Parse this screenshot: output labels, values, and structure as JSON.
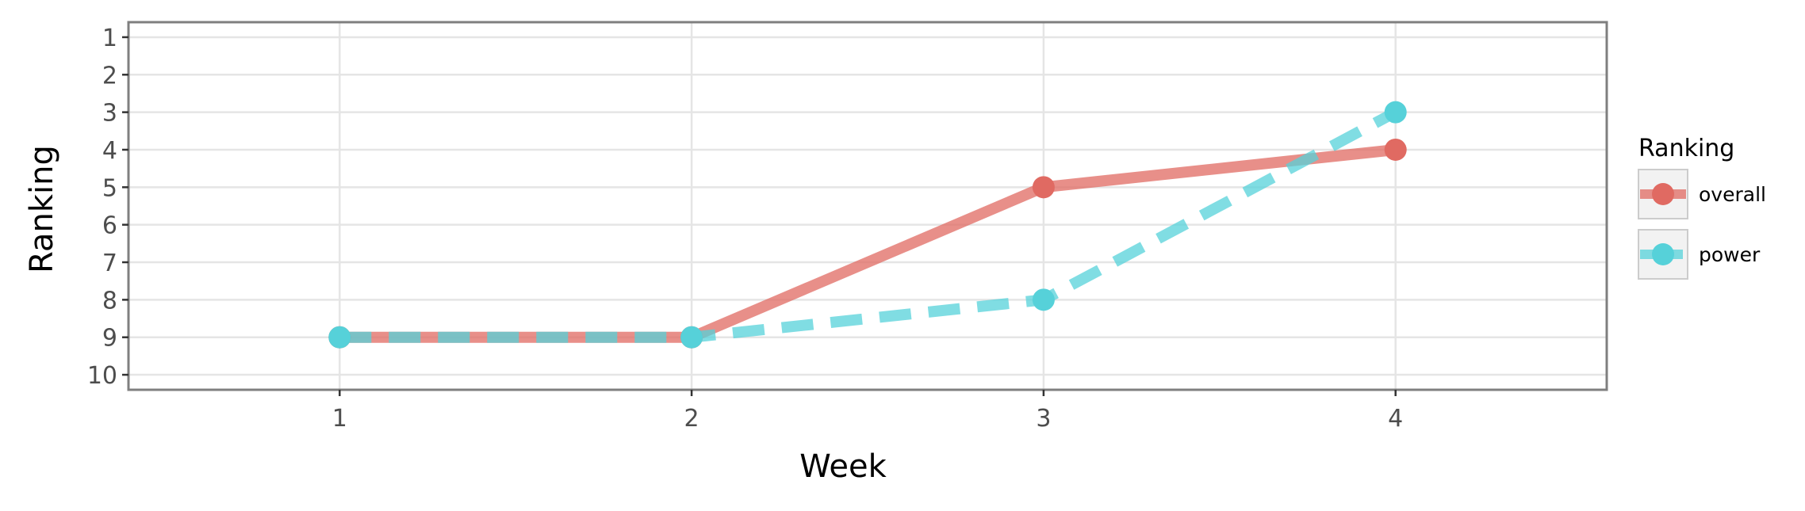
{
  "chart_data": {
    "type": "line",
    "xlabel": "Week",
    "ylabel": "Ranking",
    "x": [
      1,
      2,
      3,
      4
    ],
    "xlim": [
      0.4,
      4.6
    ],
    "ylim": [
      10.4,
      0.6
    ],
    "y_reversed": true,
    "x_ticks": [
      "1",
      "2",
      "3",
      "4"
    ],
    "y_ticks": [
      "1",
      "2",
      "3",
      "4",
      "5",
      "6",
      "7",
      "8",
      "9",
      "10"
    ],
    "grid": true,
    "legend": {
      "title": "Ranking",
      "position": "right"
    },
    "series": [
      {
        "name": "overall",
        "values": [
          9,
          9,
          5,
          4
        ],
        "color": "#e06a62",
        "line_style": "solid"
      },
      {
        "name": "power",
        "values": [
          9,
          9,
          8,
          3
        ],
        "color": "#56d1d9",
        "line_style": "dashed"
      }
    ]
  }
}
